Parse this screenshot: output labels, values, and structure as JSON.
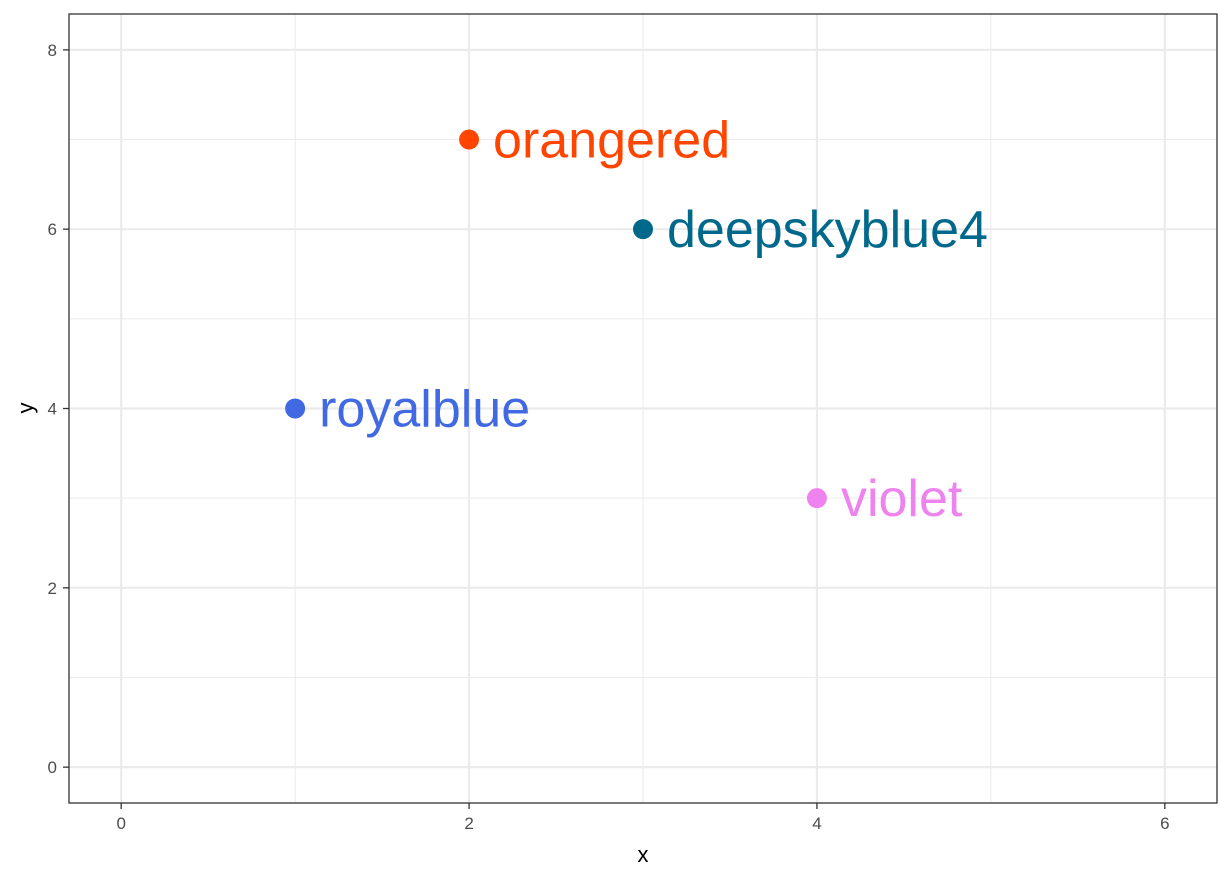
{
  "chart_data": {
    "type": "scatter",
    "title": "",
    "xlabel": "x",
    "ylabel": "y",
    "xlim": [
      -0.3,
      6.3
    ],
    "ylim": [
      -0.4,
      8.4
    ],
    "x_ticks": [
      0,
      2,
      4,
      6
    ],
    "y_ticks": [
      0,
      2,
      4,
      6,
      8
    ],
    "x_minor_gridlines": [
      1,
      3,
      5
    ],
    "y_minor_gridlines": [
      1,
      3,
      5,
      7
    ],
    "grid": true,
    "legend": "none",
    "points": [
      {
        "x": 1,
        "y": 4,
        "label": "royalblue",
        "color": "#4169E1"
      },
      {
        "x": 2,
        "y": 7,
        "label": "orangered",
        "color": "#FF4500"
      },
      {
        "x": 3,
        "y": 6,
        "label": "deepskyblue4",
        "color": "#00688B"
      },
      {
        "x": 4,
        "y": 3,
        "label": "violet",
        "color": "#EE82EE"
      }
    ]
  }
}
